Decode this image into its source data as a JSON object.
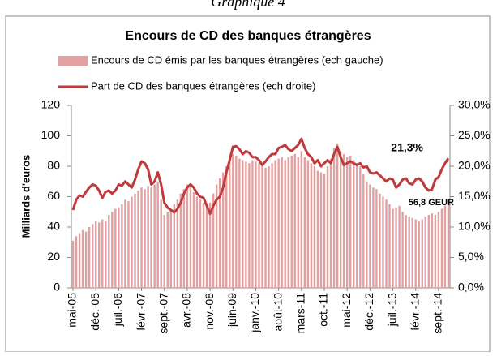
{
  "chart_data": {
    "type": "bar-line",
    "caption": "Graphique 4",
    "title": "Encours de CD des banques étrangères",
    "y_label": "Milliards d'euros",
    "annotations": [
      {
        "text": "21,3%"
      },
      {
        "text": "56,8 GEUR"
      }
    ],
    "categories": [
      "mai-05",
      null,
      null,
      null,
      null,
      null,
      null,
      "déc.-05",
      null,
      null,
      null,
      null,
      null,
      null,
      "juil.-06",
      null,
      null,
      null,
      null,
      null,
      null,
      "févr.-07",
      null,
      null,
      null,
      null,
      null,
      null,
      "sept.-07",
      null,
      null,
      null,
      null,
      null,
      null,
      "avr.-08",
      null,
      null,
      null,
      null,
      null,
      null,
      "nov.-08",
      null,
      null,
      null,
      null,
      null,
      null,
      "juin-09",
      null,
      null,
      null,
      null,
      null,
      null,
      "janv.-10",
      null,
      null,
      null,
      null,
      null,
      null,
      "août-10",
      null,
      null,
      null,
      null,
      null,
      null,
      "mars-11",
      null,
      null,
      null,
      null,
      null,
      null,
      "oct.-11",
      null,
      null,
      null,
      null,
      null,
      null,
      "mai-12",
      null,
      null,
      null,
      null,
      null,
      null,
      "déc.-12",
      null,
      null,
      null,
      null,
      null,
      null,
      "juil.-13",
      null,
      null,
      null,
      null,
      null,
      null,
      "févr.-14",
      null,
      null,
      null,
      null,
      null,
      null,
      "sept.-14",
      null,
      null,
      null
    ],
    "series": [
      {
        "name": "Encours de CD émis par les banques étrangères (ech gauche)",
        "kind": "bar",
        "color": "#e3a0a0",
        "values": [
          31,
          34,
          36,
          38,
          37,
          40,
          42,
          44,
          43,
          45,
          44,
          48,
          50,
          52,
          53,
          55,
          58,
          57,
          60,
          62,
          64,
          66,
          65,
          67,
          66,
          68,
          70,
          58,
          48,
          50,
          52,
          55,
          58,
          62,
          65,
          68,
          66,
          63,
          60,
          58,
          56,
          55,
          56,
          62,
          68,
          72,
          76,
          80,
          84,
          88,
          87,
          85,
          84,
          83,
          82,
          84,
          83,
          82,
          80,
          79,
          80,
          82,
          84,
          85,
          86,
          84,
          86,
          87,
          88,
          86,
          90,
          86,
          84,
          82,
          80,
          77,
          76,
          75,
          80,
          85,
          92,
          95,
          90,
          88,
          86,
          87,
          84,
          82,
          80,
          75,
          70,
          68,
          66,
          65,
          62,
          60,
          58,
          55,
          52,
          53,
          54,
          50,
          48,
          47,
          46,
          45,
          44,
          45,
          47,
          48,
          49,
          48,
          50,
          52,
          54,
          56.8
        ]
      },
      {
        "name": "Part de CD des banques étrangères (ech droite)",
        "kind": "line",
        "axis": "y2",
        "color": "#c0393b",
        "values": [
          12.8,
          14.5,
          15.2,
          15,
          15.8,
          16.5,
          17,
          16.8,
          16,
          14.8,
          15.8,
          16,
          15.5,
          16,
          17,
          16.8,
          17.5,
          17,
          16.5,
          17.8,
          19.5,
          20.8,
          20.5,
          19.5,
          17,
          17.5,
          19,
          17,
          14,
          13.2,
          12.8,
          12.4,
          13,
          14,
          15.5,
          16.5,
          17,
          16.5,
          15.5,
          15,
          14.8,
          13.5,
          12.2,
          13.5,
          14.5,
          15,
          16.5,
          19,
          21,
          23.2,
          23.3,
          22.8,
          22,
          22.5,
          22.2,
          21.5,
          21.5,
          21,
          20.2,
          20.8,
          21.5,
          22,
          22,
          23,
          23.2,
          23.5,
          22.8,
          22.5,
          23,
          23.5,
          24.5,
          23,
          22,
          21.5,
          20.5,
          21,
          20,
          20.5,
          21,
          20.5,
          22,
          23.2,
          21.5,
          20.2,
          20.5,
          20.8,
          20.5,
          20.2,
          20.5,
          19.8,
          20,
          19,
          18.8,
          19,
          18.5,
          18,
          17.5,
          18,
          17.8,
          16.5,
          17,
          17.8,
          18,
          17.2,
          17,
          17.8,
          18,
          17.5,
          16.5,
          16,
          16.2,
          17.8,
          18.2,
          19.5,
          20.5,
          21.3
        ]
      }
    ],
    "ylim": [
      0,
      120
    ],
    "yticks": [
      0,
      20,
      40,
      60,
      80,
      100,
      120
    ],
    "y2lim": [
      0,
      30
    ],
    "y2ticks": [
      {
        "value": 0,
        "label": "0,0%"
      },
      {
        "value": 5,
        "label": "5,0%"
      },
      {
        "value": 10,
        "label": "10,0%"
      },
      {
        "value": 15,
        "label": "15,0%"
      },
      {
        "value": 20,
        "label": "20,0%"
      },
      {
        "value": 25,
        "label": "25,0%"
      },
      {
        "value": 30,
        "label": "30,0%"
      }
    ],
    "grid": true
  }
}
